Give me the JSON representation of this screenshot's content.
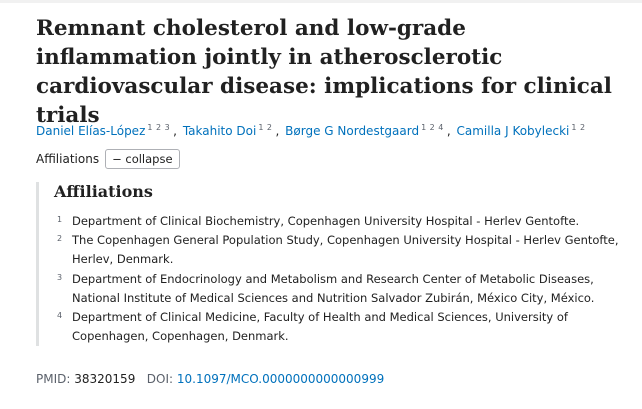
{
  "article": {
    "title": "Remnant cholesterol and low-grade inflammation jointly in atherosclerotic cardiovascular disease: implications for clinical trials"
  },
  "authors": [
    {
      "name": "Daniel Elías-López",
      "affs": [
        "1",
        "2",
        "3"
      ]
    },
    {
      "name": "Takahito Doi",
      "affs": [
        "1",
        "2"
      ]
    },
    {
      "name": "Børge G Nordestgaard",
      "affs": [
        "1",
        "2",
        "4"
      ]
    },
    {
      "name": "Camilla J Kobylecki",
      "affs": [
        "1",
        "2"
      ]
    }
  ],
  "affiliations_toggle": {
    "label": "Affiliations",
    "button": "− collapse"
  },
  "affiliations": {
    "heading": "Affiliations",
    "items": [
      {
        "num": "1",
        "text": "Department of Clinical Biochemistry, Copenhagen University Hospital - Herlev Gentofte."
      },
      {
        "num": "2",
        "text": "The Copenhagen General Population Study, Copenhagen University Hospital - Herlev Gentofte, Herlev, Denmark."
      },
      {
        "num": "3",
        "text": "Department of Endocrinology and Metabolism and Research Center of Metabolic Diseases, National Institute of Medical Sciences and Nutrition Salvador Zubirán, México City, México."
      },
      {
        "num": "4",
        "text": "Department of Clinical Medicine, Faculty of Health and Medical Sciences, University of Copenhagen, Copenhagen, Denmark."
      }
    ]
  },
  "identifiers": {
    "pmid_label": "PMID:",
    "pmid": "38320159",
    "doi_label": "DOI:",
    "doi": "10.1097/MCO.0000000000000999"
  },
  "colors": {
    "link": "#0071bc",
    "text": "#212121",
    "muted": "#5b616b"
  }
}
